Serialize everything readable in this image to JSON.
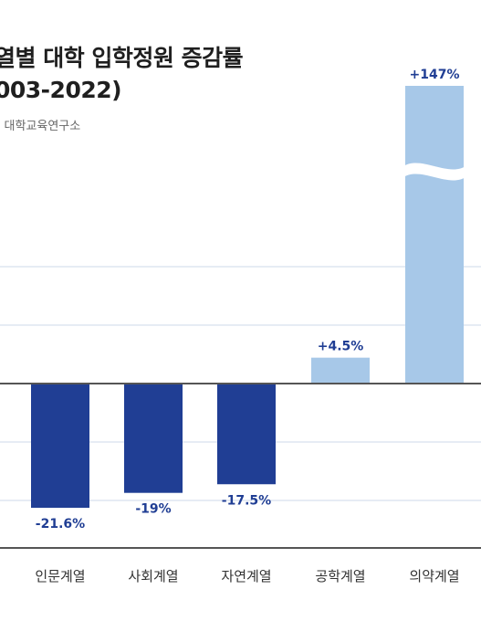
{
  "title_line1": "열별 대학 입학정원 증감률",
  "title_line2": "003-2022)",
  "source": ": 대학교육연구소",
  "colors": {
    "negative": "#203e94",
    "positive": "#a7c8e8",
    "axis": "#555555",
    "grid": "#cdd9ea"
  },
  "chart_data": {
    "type": "bar",
    "title": "열별 대학 입학정원 증감률 (003-2022)",
    "categories": [
      "인문계열",
      "사회계열",
      "자연계열",
      "공학계열",
      "의약계열"
    ],
    "values": [
      -21.6,
      -19,
      -17.5,
      4.5,
      147
    ],
    "data_labels": [
      "-21.6%",
      "-19%",
      "-17.5%",
      "+4.5%",
      "+147%"
    ],
    "ylim": [
      -30,
      147
    ],
    "grid": true,
    "axis_break": true
  }
}
